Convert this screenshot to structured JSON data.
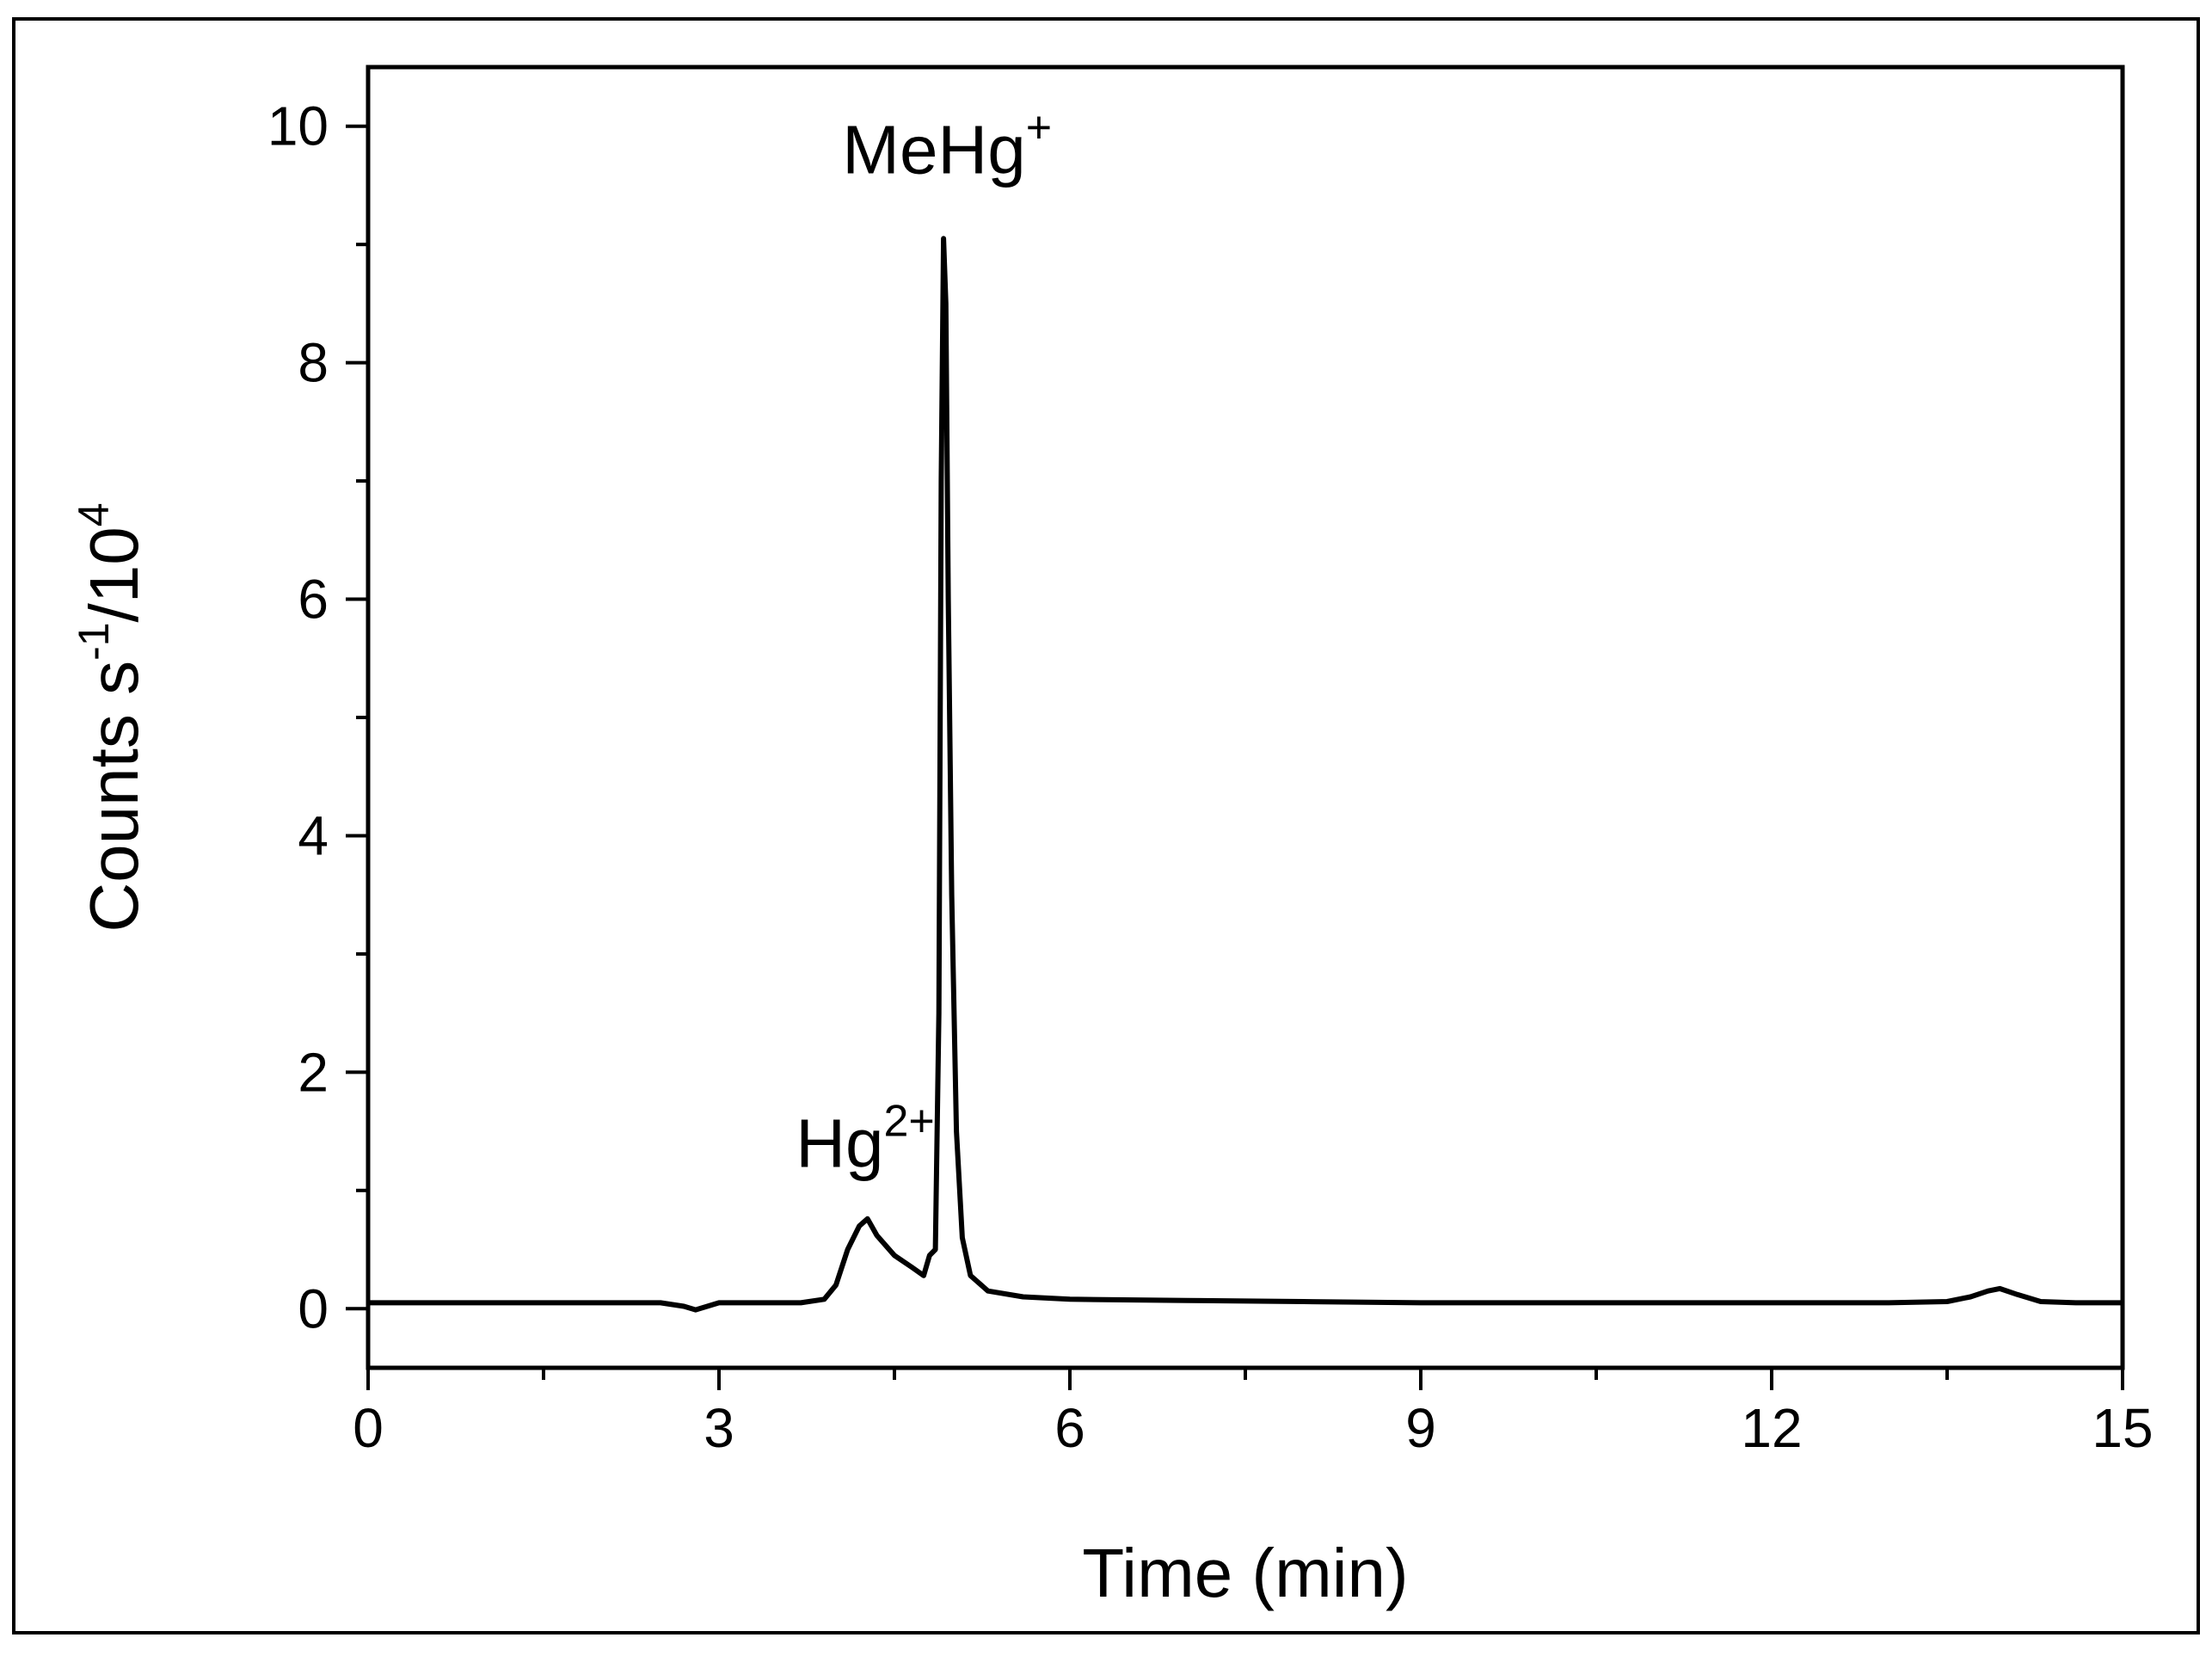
{
  "chart_data": {
    "type": "line",
    "xlabel": "Time (min)",
    "ylabel": {
      "text_main": "Counts s",
      "sup1": "-1",
      "text_mid": "/10",
      "sup2": "4"
    },
    "xlim": [
      0,
      15
    ],
    "ylim": [
      -0.5,
      10.5
    ],
    "x_ticks": [
      0,
      3,
      6,
      9,
      12,
      15
    ],
    "x_tick_labels": [
      "0",
      "3",
      "6",
      "9",
      "12",
      "15"
    ],
    "y_ticks": [
      0,
      2,
      4,
      6,
      8,
      10
    ],
    "y_tick_labels": [
      "0",
      "2",
      "4",
      "6",
      "8",
      "10"
    ],
    "grid": false,
    "legend": "none",
    "annotations": [
      {
        "base": "Hg",
        "sup": "2+",
        "x": 4.25,
        "y": 1.2
      },
      {
        "base": "MeHg",
        "sup": "+",
        "x": 4.95,
        "y": 9.6
      }
    ],
    "series": [
      {
        "color": "#000000",
        "points": [
          [
            0.0,
            0.05
          ],
          [
            0.5,
            0.05
          ],
          [
            1.0,
            0.05
          ],
          [
            1.5,
            0.05
          ],
          [
            2.0,
            0.05
          ],
          [
            2.5,
            0.05
          ],
          [
            2.7,
            0.02
          ],
          [
            2.8,
            -0.01
          ],
          [
            2.9,
            0.02
          ],
          [
            3.0,
            0.05
          ],
          [
            3.4,
            0.05
          ],
          [
            3.7,
            0.05
          ],
          [
            3.9,
            0.08
          ],
          [
            4.0,
            0.2
          ],
          [
            4.1,
            0.5
          ],
          [
            4.2,
            0.7
          ],
          [
            4.27,
            0.76
          ],
          [
            4.35,
            0.62
          ],
          [
            4.5,
            0.45
          ],
          [
            4.65,
            0.35
          ],
          [
            4.75,
            0.28
          ],
          [
            4.8,
            0.45
          ],
          [
            4.85,
            0.5
          ],
          [
            4.88,
            2.5
          ],
          [
            4.9,
            7.0
          ],
          [
            4.92,
            9.05
          ],
          [
            4.94,
            8.5
          ],
          [
            4.96,
            6.0
          ],
          [
            4.99,
            3.5
          ],
          [
            5.03,
            1.5
          ],
          [
            5.08,
            0.6
          ],
          [
            5.15,
            0.28
          ],
          [
            5.3,
            0.15
          ],
          [
            5.6,
            0.1
          ],
          [
            6.0,
            0.08
          ],
          [
            7.0,
            0.07
          ],
          [
            8.0,
            0.06
          ],
          [
            9.0,
            0.05
          ],
          [
            10.0,
            0.05
          ],
          [
            11.0,
            0.05
          ],
          [
            12.0,
            0.05
          ],
          [
            13.0,
            0.05
          ],
          [
            13.5,
            0.06
          ],
          [
            13.7,
            0.1
          ],
          [
            13.85,
            0.15
          ],
          [
            13.95,
            0.17
          ],
          [
            14.1,
            0.12
          ],
          [
            14.3,
            0.06
          ],
          [
            14.6,
            0.05
          ],
          [
            15.0,
            0.05
          ]
        ]
      }
    ]
  }
}
